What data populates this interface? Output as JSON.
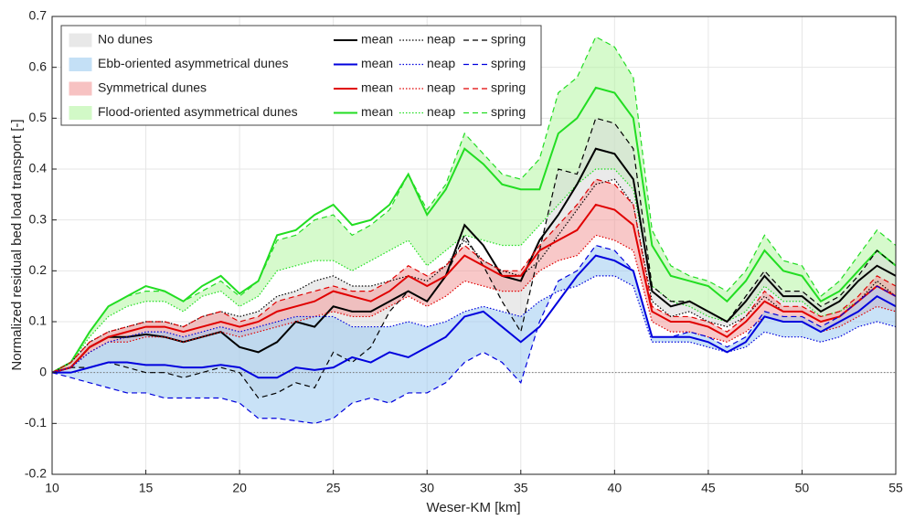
{
  "chart_data": {
    "type": "line",
    "xlabel": "Weser-KM [km]",
    "ylabel": "Normalized residual bed load transport [-]",
    "x": [
      10,
      11,
      12,
      13,
      14,
      15,
      16,
      17,
      18,
      19,
      20,
      21,
      22,
      23,
      24,
      25,
      26,
      27,
      28,
      29,
      30,
      31,
      32,
      33,
      34,
      35,
      36,
      37,
      38,
      39,
      40,
      41,
      42,
      43,
      44,
      45,
      46,
      47,
      48,
      49,
      50,
      51,
      52,
      53,
      54,
      55
    ],
    "xlim": [
      10,
      55
    ],
    "ylim": [
      -0.2,
      0.7
    ],
    "xticks": [
      10,
      15,
      20,
      25,
      30,
      35,
      40,
      45,
      50,
      55
    ],
    "yticks": [
      -0.2,
      -0.1,
      0,
      0.1,
      0.2,
      0.3,
      0.4,
      0.5,
      0.6,
      0.7
    ],
    "grid": true,
    "zero_line": 0,
    "legend": "upper left",
    "groups": [
      {
        "name": "No dunes",
        "color": "#000000",
        "fill": "#d8d8d8",
        "lines": [
          {
            "name": "mean",
            "style": "solid",
            "values": [
              0,
              0.01,
              0.05,
              0.07,
              0.07,
              0.075,
              0.07,
              0.06,
              0.07,
              0.08,
              0.05,
              0.04,
              0.06,
              0.1,
              0.09,
              0.13,
              0.12,
              0.12,
              0.14,
              0.16,
              0.14,
              0.19,
              0.29,
              0.25,
              0.19,
              0.18,
              0.26,
              0.31,
              0.37,
              0.44,
              0.43,
              0.38,
              0.16,
              0.13,
              0.14,
              0.12,
              0.1,
              0.14,
              0.19,
              0.15,
              0.15,
              0.12,
              0.14,
              0.18,
              0.21,
              0.19
            ]
          },
          {
            "name": "neap",
            "style": "dotted",
            "values": [
              0,
              0.02,
              0.06,
              0.08,
              0.09,
              0.1,
              0.1,
              0.09,
              0.11,
              0.12,
              0.11,
              0.12,
              0.15,
              0.16,
              0.18,
              0.19,
              0.17,
              0.17,
              0.18,
              0.19,
              0.18,
              0.21,
              0.26,
              0.22,
              0.2,
              0.19,
              0.22,
              0.27,
              0.32,
              0.37,
              0.38,
              0.33,
              0.14,
              0.11,
              0.12,
              0.1,
              0.09,
              0.11,
              0.15,
              0.12,
              0.12,
              0.1,
              0.11,
              0.14,
              0.18,
              0.15
            ]
          },
          {
            "name": "spring",
            "style": "dashed",
            "values": [
              0,
              0.01,
              0.01,
              0.02,
              0.01,
              0,
              0,
              -0.01,
              0,
              0.01,
              0,
              -0.05,
              -0.04,
              -0.02,
              -0.03,
              0.04,
              0.02,
              0.05,
              0.12,
              0.16,
              0.14,
              0.19,
              0.27,
              0.21,
              0.14,
              0.08,
              0.24,
              0.4,
              0.39,
              0.5,
              0.49,
              0.44,
              0.17,
              0.14,
              0.14,
              0.12,
              0.1,
              0.15,
              0.2,
              0.16,
              0.16,
              0.13,
              0.15,
              0.19,
              0.24,
              0.21
            ]
          }
        ]
      },
      {
        "name": "Ebb-oriented asymmetrical dunes",
        "color": "#0000dd",
        "fill": "#9ccbf0",
        "lines": [
          {
            "name": "mean",
            "style": "solid",
            "values": [
              0,
              0,
              0.01,
              0.02,
              0.02,
              0.015,
              0.015,
              0.01,
              0.01,
              0.015,
              0.01,
              -0.01,
              -0.01,
              0.01,
              0.005,
              0.01,
              0.03,
              0.02,
              0.04,
              0.03,
              0.05,
              0.07,
              0.11,
              0.12,
              0.09,
              0.06,
              0.09,
              0.14,
              0.19,
              0.23,
              0.22,
              0.2,
              0.07,
              0.07,
              0.07,
              0.06,
              0.04,
              0.06,
              0.11,
              0.1,
              0.1,
              0.08,
              0.1,
              0.12,
              0.15,
              0.13
            ]
          },
          {
            "name": "neap",
            "style": "dotted",
            "values": [
              0,
              0.01,
              0.04,
              0.06,
              0.07,
              0.08,
              0.08,
              0.07,
              0.08,
              0.09,
              0.08,
              0.09,
              0.1,
              0.11,
              0.11,
              0.11,
              0.09,
              0.09,
              0.09,
              0.1,
              0.09,
              0.1,
              0.12,
              0.13,
              0.12,
              0.11,
              0.14,
              0.16,
              0.17,
              0.19,
              0.19,
              0.17,
              0.06,
              0.06,
              0.06,
              0.05,
              0.04,
              0.05,
              0.08,
              0.07,
              0.07,
              0.06,
              0.07,
              0.09,
              0.1,
              0.09
            ]
          },
          {
            "name": "spring",
            "style": "dashed",
            "values": [
              0,
              -0.01,
              -0.02,
              -0.03,
              -0.04,
              -0.04,
              -0.05,
              -0.05,
              -0.05,
              -0.05,
              -0.06,
              -0.09,
              -0.09,
              -0.095,
              -0.1,
              -0.09,
              -0.06,
              -0.05,
              -0.06,
              -0.04,
              -0.04,
              -0.02,
              0.02,
              0.04,
              0.02,
              -0.02,
              0.1,
              0.18,
              0.2,
              0.25,
              0.24,
              0.2,
              0.07,
              0.07,
              0.08,
              0.07,
              0.05,
              0.07,
              0.12,
              0.11,
              0.11,
              0.09,
              0.11,
              0.14,
              0.17,
              0.15
            ]
          }
        ]
      },
      {
        "name": "Symmetrical dunes",
        "color": "#e00000",
        "fill": "#f29a9a",
        "lines": [
          {
            "name": "mean",
            "style": "solid",
            "values": [
              0,
              0.01,
              0.05,
              0.07,
              0.08,
              0.09,
              0.09,
              0.08,
              0.09,
              0.1,
              0.09,
              0.1,
              0.12,
              0.13,
              0.14,
              0.16,
              0.15,
              0.14,
              0.16,
              0.19,
              0.17,
              0.19,
              0.23,
              0.21,
              0.19,
              0.19,
              0.24,
              0.26,
              0.28,
              0.33,
              0.32,
              0.29,
              0.12,
              0.1,
              0.1,
              0.09,
              0.07,
              0.1,
              0.14,
              0.12,
              0.12,
              0.1,
              0.11,
              0.14,
              0.17,
              0.15
            ]
          },
          {
            "name": "neap",
            "style": "dotted",
            "values": [
              0,
              0.01,
              0.04,
              0.06,
              0.06,
              0.07,
              0.07,
              0.06,
              0.07,
              0.08,
              0.07,
              0.08,
              0.09,
              0.1,
              0.11,
              0.12,
              0.11,
              0.11,
              0.13,
              0.15,
              0.13,
              0.15,
              0.18,
              0.17,
              0.16,
              0.16,
              0.2,
              0.22,
              0.23,
              0.27,
              0.26,
              0.24,
              0.1,
              0.08,
              0.08,
              0.07,
              0.06,
              0.08,
              0.11,
              0.1,
              0.1,
              0.08,
              0.09,
              0.11,
              0.13,
              0.12
            ]
          },
          {
            "name": "spring",
            "style": "dashed",
            "values": [
              0,
              0.02,
              0.06,
              0.08,
              0.09,
              0.1,
              0.1,
              0.09,
              0.11,
              0.12,
              0.1,
              0.11,
              0.14,
              0.15,
              0.16,
              0.17,
              0.16,
              0.16,
              0.18,
              0.21,
              0.19,
              0.21,
              0.25,
              0.22,
              0.2,
              0.2,
              0.25,
              0.29,
              0.33,
              0.38,
              0.37,
              0.33,
              0.13,
              0.11,
              0.11,
              0.1,
              0.08,
              0.11,
              0.16,
              0.13,
              0.13,
              0.11,
              0.12,
              0.15,
              0.19,
              0.17
            ]
          }
        ]
      },
      {
        "name": "Flood-oriented asymmetrical dunes",
        "color": "#22dd22",
        "fill": "#b4f5a2",
        "lines": [
          {
            "name": "mean",
            "style": "solid",
            "values": [
              0,
              0.02,
              0.08,
              0.13,
              0.15,
              0.17,
              0.16,
              0.14,
              0.17,
              0.19,
              0.155,
              0.18,
              0.27,
              0.28,
              0.31,
              0.33,
              0.29,
              0.3,
              0.33,
              0.39,
              0.31,
              0.36,
              0.44,
              0.41,
              0.37,
              0.36,
              0.36,
              0.47,
              0.5,
              0.56,
              0.55,
              0.5,
              0.25,
              0.19,
              0.18,
              0.17,
              0.14,
              0.18,
              0.24,
              0.2,
              0.19,
              0.14,
              0.16,
              0.2,
              0.24,
              0.21
            ]
          },
          {
            "name": "neap",
            "style": "dotted",
            "values": [
              0,
              0.02,
              0.07,
              0.11,
              0.13,
              0.14,
              0.14,
              0.12,
              0.15,
              0.16,
              0.13,
              0.15,
              0.2,
              0.21,
              0.22,
              0.22,
              0.2,
              0.22,
              0.24,
              0.26,
              0.21,
              0.24,
              0.27,
              0.26,
              0.25,
              0.25,
              0.29,
              0.33,
              0.37,
              0.4,
              0.4,
              0.36,
              0.17,
              0.14,
              0.13,
              0.11,
              0.1,
              0.12,
              0.17,
              0.14,
              0.14,
              0.11,
              0.12,
              0.14,
              0.17,
              0.15
            ]
          },
          {
            "name": "spring",
            "style": "dashed",
            "values": [
              0,
              0.02,
              0.08,
              0.13,
              0.15,
              0.16,
              0.16,
              0.14,
              0.16,
              0.18,
              0.15,
              0.18,
              0.26,
              0.27,
              0.3,
              0.31,
              0.27,
              0.29,
              0.32,
              0.39,
              0.32,
              0.37,
              0.47,
              0.43,
              0.39,
              0.38,
              0.42,
              0.55,
              0.58,
              0.66,
              0.64,
              0.58,
              0.28,
              0.21,
              0.19,
              0.18,
              0.16,
              0.2,
              0.27,
              0.22,
              0.21,
              0.15,
              0.18,
              0.23,
              0.28,
              0.25
            ]
          }
        ]
      }
    ]
  }
}
